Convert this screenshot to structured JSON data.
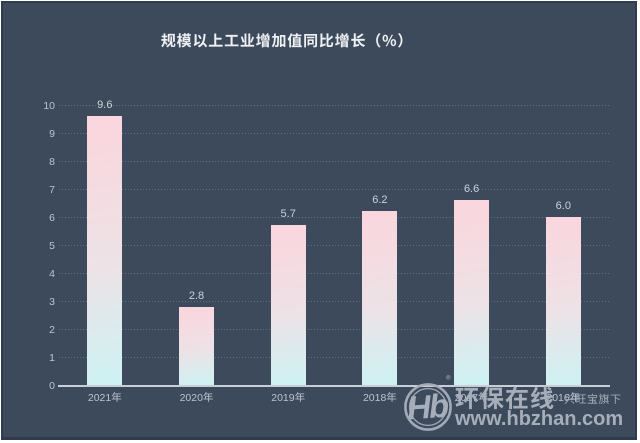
{
  "chart_data": {
    "type": "bar",
    "title": "规模以上工业增加值同比增长（%）",
    "categories": [
      "2021年",
      "2020年",
      "2019年",
      "2018年",
      "2017年",
      "2016年"
    ],
    "values": [
      9.6,
      2.8,
      5.7,
      6.2,
      6.6,
      6.0
    ],
    "value_labels": [
      "9.6",
      "2.8",
      "5.7",
      "6.2",
      "6.6",
      "6.0"
    ],
    "xlabel": "",
    "ylabel": "",
    "ylim": [
      0,
      10
    ],
    "ytick_labels": [
      "0",
      "1",
      "2",
      "3",
      "4",
      "5",
      "6",
      "7",
      "8",
      "9",
      "10"
    ],
    "grid": {
      "horizontal_gridlines": true,
      "style": "dotted"
    },
    "legend_position": "none",
    "colors": {
      "background": "#3C4A5C",
      "bar_gradient_top": "#FBD5DD",
      "bar_gradient_bottom": "#CDF2F4",
      "title_text": "#EEF1F4",
      "axis_label_text": "#BFC7D2",
      "value_label_text": "#CBD2DB",
      "axis_line": "#C9CED6",
      "gridline": "#5C6A7B"
    }
  },
  "watermark": {
    "logo_monogram": "Hb",
    "registered_mark": "®",
    "site_name": "环保在线",
    "affiliation": "兴旺宝旗下",
    "site_url": "www.hbzhan.com",
    "color": "#A6AEBA"
  }
}
